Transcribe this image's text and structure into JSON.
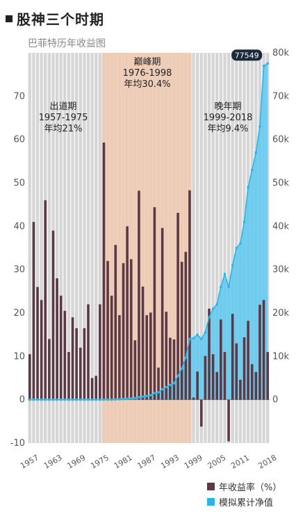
{
  "title": "股神三个时期",
  "subtitle": "巴菲特历年收益图",
  "chart_data": {
    "type": "bar",
    "x_start": 1956,
    "x_ticks": [
      "1957",
      "1963",
      "1969",
      "1975",
      "1981",
      "1987",
      "1993",
      "1999",
      "2005",
      "2011",
      "2018"
    ],
    "left_axis": {
      "ticks": [
        "-10",
        "0",
        "10",
        "20",
        "30",
        "40",
        "50",
        "60",
        "70"
      ],
      "ylim": [
        -10,
        80
      ]
    },
    "right_axis": {
      "ticks": [
        "0",
        "10k",
        "20k",
        "30k",
        "40k",
        "50k",
        "60k",
        "70k",
        "80k"
      ],
      "ylim": [
        -10000,
        80000
      ]
    },
    "series": [
      {
        "name": "年收益率（%）",
        "color": "#5b3a46",
        "values": [
          10.5,
          41,
          26,
          23,
          46,
          14,
          39,
          28,
          24,
          20.5,
          11,
          19,
          16.5,
          12,
          16.5,
          22,
          5,
          5.5,
          22,
          59.3,
          32,
          24,
          35.7,
          19.5,
          31.5,
          40,
          32.4,
          13.7,
          48.2,
          26.1,
          19.5,
          20.1,
          44.4,
          7.4,
          39.6,
          20.3,
          14.3,
          13.9,
          43.1,
          31.8,
          34.1,
          48.3,
          0.5,
          6.5,
          -6.2,
          10.1,
          21,
          10.5,
          6.4,
          18.5,
          11,
          -9.6,
          19.8,
          13,
          4.6,
          14.4,
          18.2,
          8.2,
          6.4,
          21.9,
          23,
          11
        ]
      },
      {
        "name": "模拟累计净值",
        "color": "#2ab4e8",
        "values": [
          0,
          0,
          0,
          0,
          0,
          0,
          0,
          0,
          0,
          0,
          0,
          0,
          0,
          0,
          0,
          0,
          0,
          0,
          0,
          0,
          0,
          0,
          50,
          100,
          150,
          220,
          300,
          380,
          550,
          700,
          850,
          1050,
          1500,
          1700,
          2400,
          2900,
          3400,
          3800,
          5500,
          7200,
          9700,
          14000,
          14200,
          15000,
          14000,
          15500,
          19000,
          21000,
          22000,
          26000,
          29000,
          26000,
          31000,
          35000,
          36000,
          41000,
          49000,
          53000,
          57000,
          63000,
          77000,
          77549
        ]
      }
    ],
    "peak_label": "77549",
    "eras": [
      {
        "label": "出道期",
        "years": "1957-1975",
        "avg": "年均21%",
        "start": 1956,
        "end": 1975
      },
      {
        "label": "巅峰期",
        "years": "1976-1998",
        "avg": "年均30.4%",
        "start": 1975,
        "end": 1998,
        "color": "#f0c9b2"
      },
      {
        "label": "晚年期",
        "years": "1999-2018",
        "avg": "年均9.4%",
        "start": 1998,
        "end": 2018
      }
    ],
    "grid": "vertical-stripes",
    "legend_position": "bottom-right"
  }
}
